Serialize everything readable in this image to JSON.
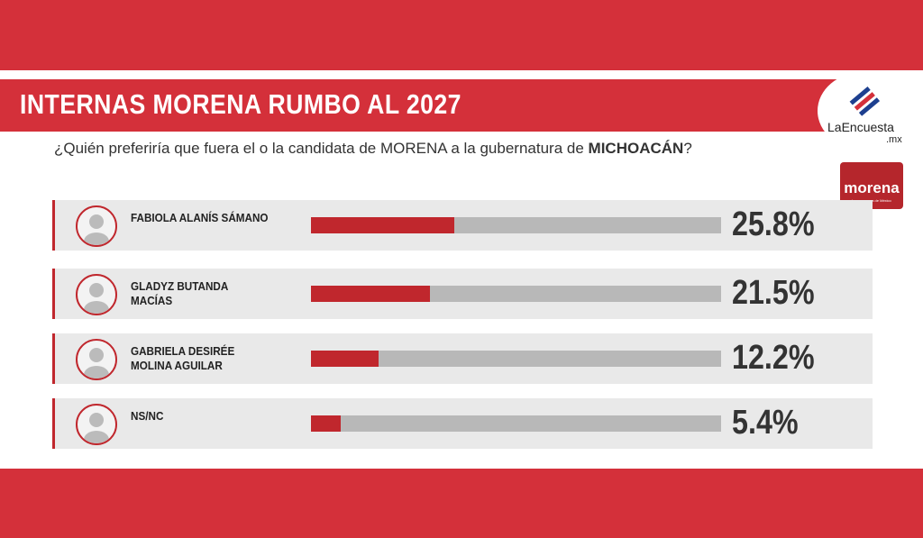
{
  "chart_data": {
    "type": "bar",
    "orientation": "horizontal",
    "title": "INTERNAS MORENA RUMBO AL 2027",
    "subtitle": [
      "¿Quién preferiría que fuera el o la candidata de MORENA a la gubernatura de ",
      "MICHOACÁN",
      "?"
    ],
    "categories": [
      "FABIOLA ALANÍS SÁMANO",
      "GLADYZ BUTANDA MACÍAS",
      "GABRIELA DESIRÉE MOLINA AGUILAR",
      "NS/NC"
    ],
    "values": [
      25.8,
      21.5,
      12.2,
      5.4
    ],
    "value_labels": [
      "25.8%",
      "21.5%",
      "12.2%",
      "5.4%"
    ],
    "color": "#c0272d",
    "logos": [
      "LaEncuesta",
      ".mx",
      "morena",
      "La esperanza de México"
    ]
  }
}
